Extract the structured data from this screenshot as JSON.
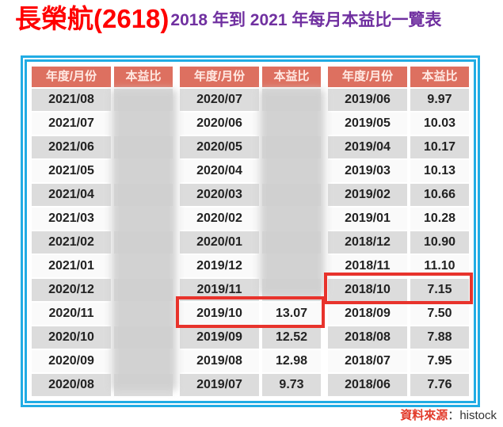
{
  "page": {
    "title": "長榮航(2618)",
    "subtitle": "2018 年到 2021 年每月本益比一覽表"
  },
  "table": {
    "month_header": "年度/月份",
    "pe_header": "本益比",
    "groups": [
      {
        "rows": [
          {
            "month": "2021/08",
            "pe": null
          },
          {
            "month": "2021/07",
            "pe": null
          },
          {
            "month": "2021/06",
            "pe": null
          },
          {
            "month": "2021/05",
            "pe": null
          },
          {
            "month": "2021/04",
            "pe": null
          },
          {
            "month": "2021/03",
            "pe": null
          },
          {
            "month": "2021/02",
            "pe": null
          },
          {
            "month": "2021/01",
            "pe": null
          },
          {
            "month": "2020/12",
            "pe": null
          },
          {
            "month": "2020/11",
            "pe": null
          },
          {
            "month": "2020/10",
            "pe": null
          },
          {
            "month": "2020/09",
            "pe": null
          },
          {
            "month": "2020/08",
            "pe": null
          }
        ]
      },
      {
        "rows": [
          {
            "month": "2020/07",
            "pe": null
          },
          {
            "month": "2020/06",
            "pe": null
          },
          {
            "month": "2020/05",
            "pe": null
          },
          {
            "month": "2020/04",
            "pe": null
          },
          {
            "month": "2020/03",
            "pe": null
          },
          {
            "month": "2020/02",
            "pe": null
          },
          {
            "month": "2020/01",
            "pe": null
          },
          {
            "month": "2019/12",
            "pe": null
          },
          {
            "month": "2019/11",
            "pe": null
          },
          {
            "month": "2019/10",
            "pe": "13.07"
          },
          {
            "month": "2019/09",
            "pe": "12.52"
          },
          {
            "month": "2019/08",
            "pe": "12.98"
          },
          {
            "month": "2019/07",
            "pe": "9.73"
          }
        ]
      },
      {
        "rows": [
          {
            "month": "2019/06",
            "pe": "9.97"
          },
          {
            "month": "2019/05",
            "pe": "10.03"
          },
          {
            "month": "2019/04",
            "pe": "10.17"
          },
          {
            "month": "2019/03",
            "pe": "10.13"
          },
          {
            "month": "2019/02",
            "pe": "10.66"
          },
          {
            "month": "2019/01",
            "pe": "10.28"
          },
          {
            "month": "2018/12",
            "pe": "10.90"
          },
          {
            "month": "2018/11",
            "pe": "11.10"
          },
          {
            "month": "2018/10",
            "pe": "7.15"
          },
          {
            "month": "2018/09",
            "pe": "7.50"
          },
          {
            "month": "2018/08",
            "pe": "7.88"
          },
          {
            "month": "2018/07",
            "pe": "7.95"
          },
          {
            "month": "2018/06",
            "pe": "7.76"
          }
        ]
      }
    ],
    "masked_regions": [
      {
        "group": 0,
        "row_start": 0,
        "row_end": 12
      },
      {
        "group": 1,
        "row_start": 0,
        "row_end": 8
      }
    ],
    "highlighted_rows": [
      {
        "group": 1,
        "row": 9
      },
      {
        "group": 2,
        "row": 8
      }
    ]
  },
  "footer": {
    "source_label": "資料來源",
    "source_separator": "：",
    "source_value": "histock"
  },
  "colors": {
    "title_red": "#ff0000",
    "subtitle_purple": "#7030a0",
    "border_blue": "#21ace4",
    "header_coral": "#dd7060",
    "header_text": "#ffe9e3",
    "row_gray": "#dcdcdc",
    "row_white": "#fafafa",
    "highlight_red": "#e8332c",
    "source_red": "#e23a2a"
  }
}
